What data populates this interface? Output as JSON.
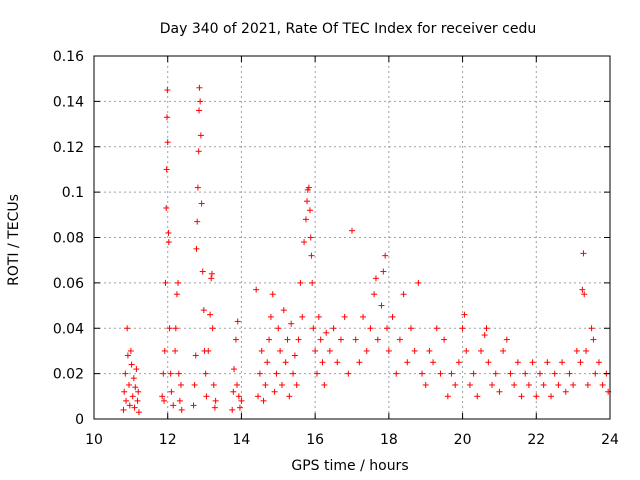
{
  "chart_data": {
    "type": "scatter",
    "title": "Day 340 of 2021, Rate Of TEC Index for receiver cedu",
    "xlabel": "GPS time / hours",
    "ylabel": "ROTI / TECUs",
    "xlim": [
      10,
      24
    ],
    "ylim": [
      0,
      0.16
    ],
    "x_ticks": [
      10,
      12,
      14,
      16,
      18,
      20,
      22,
      24
    ],
    "x_tick_labels": [
      "10",
      "12",
      "14",
      "16",
      "18",
      "20",
      "22",
      "24"
    ],
    "y_ticks": [
      0,
      0.02,
      0.04,
      0.06,
      0.08,
      0.1,
      0.12,
      0.14,
      0.16
    ],
    "y_tick_labels": [
      "0",
      "0.02",
      "0.04",
      "0.06",
      "0.08",
      "0.1",
      "0.12",
      "0.14",
      "0.16"
    ],
    "grid": true,
    "marker": "+",
    "color": "#ff0000",
    "series": [
      {
        "points": [
          [
            10.8,
            0.004
          ],
          [
            10.82,
            0.012
          ],
          [
            10.85,
            0.02
          ],
          [
            10.87,
            0.008
          ],
          [
            10.9,
            0.04
          ],
          [
            10.92,
            0.028
          ],
          [
            10.95,
            0.015
          ],
          [
            10.97,
            0.006
          ],
          [
            11.0,
            0.03
          ],
          [
            11.02,
            0.024
          ],
          [
            11.05,
            0.01
          ],
          [
            11.08,
            0.018
          ],
          [
            11.1,
            0.005
          ],
          [
            11.12,
            0.014
          ],
          [
            11.15,
            0.022
          ],
          [
            11.18,
            0.008
          ],
          [
            11.2,
            0.012
          ],
          [
            11.22,
            0.003
          ],
          [
            11.85,
            0.01
          ],
          [
            11.88,
            0.02
          ],
          [
            11.9,
            0.008
          ],
          [
            11.92,
            0.03
          ],
          [
            11.94,
            0.06
          ],
          [
            11.96,
            0.093
          ],
          [
            11.97,
            0.11
          ],
          [
            11.98,
            0.133
          ],
          [
            11.99,
            0.145
          ],
          [
            12.0,
            0.122
          ],
          [
            12.02,
            0.082
          ],
          [
            12.03,
            0.078
          ],
          [
            12.05,
            0.04
          ],
          [
            12.08,
            0.02
          ],
          [
            12.1,
            0.012
          ],
          [
            12.15,
            0.006
          ],
          [
            12.2,
            0.03
          ],
          [
            12.22,
            0.04
          ],
          [
            12.25,
            0.055
          ],
          [
            12.28,
            0.06
          ],
          [
            12.3,
            0.02
          ],
          [
            12.33,
            0.008
          ],
          [
            12.36,
            0.015
          ],
          [
            12.38,
            0.004
          ],
          [
            12.7,
            0.006
          ],
          [
            12.73,
            0.015
          ],
          [
            12.76,
            0.028
          ],
          [
            12.78,
            0.075
          ],
          [
            12.8,
            0.087
          ],
          [
            12.82,
            0.102
          ],
          [
            12.84,
            0.118
          ],
          [
            12.85,
            0.136
          ],
          [
            12.86,
            0.146
          ],
          [
            12.88,
            0.14
          ],
          [
            12.9,
            0.125
          ],
          [
            12.92,
            0.095
          ],
          [
            12.95,
            0.065
          ],
          [
            12.98,
            0.048
          ],
          [
            13.0,
            0.03
          ],
          [
            13.03,
            0.02
          ],
          [
            13.05,
            0.01
          ],
          [
            13.1,
            0.03
          ],
          [
            13.15,
            0.046
          ],
          [
            13.18,
            0.062
          ],
          [
            13.2,
            0.064
          ],
          [
            13.22,
            0.04
          ],
          [
            13.25,
            0.015
          ],
          [
            13.28,
            0.005
          ],
          [
            13.3,
            0.008
          ],
          [
            13.75,
            0.004
          ],
          [
            13.78,
            0.012
          ],
          [
            13.8,
            0.022
          ],
          [
            13.85,
            0.035
          ],
          [
            13.88,
            0.015
          ],
          [
            13.9,
            0.043
          ],
          [
            13.93,
            0.01
          ],
          [
            13.96,
            0.005
          ],
          [
            14.0,
            0.008
          ],
          [
            14.4,
            0.057
          ],
          [
            14.45,
            0.01
          ],
          [
            14.5,
            0.02
          ],
          [
            14.55,
            0.03
          ],
          [
            14.6,
            0.008
          ],
          [
            14.65,
            0.015
          ],
          [
            14.7,
            0.025
          ],
          [
            14.75,
            0.035
          ],
          [
            14.8,
            0.045
          ],
          [
            14.85,
            0.055
          ],
          [
            14.9,
            0.012
          ],
          [
            14.95,
            0.02
          ],
          [
            15.0,
            0.04
          ],
          [
            15.05,
            0.03
          ],
          [
            15.1,
            0.015
          ],
          [
            15.15,
            0.048
          ],
          [
            15.2,
            0.025
          ],
          [
            15.25,
            0.035
          ],
          [
            15.3,
            0.01
          ],
          [
            15.35,
            0.042
          ],
          [
            15.4,
            0.02
          ],
          [
            15.45,
            0.028
          ],
          [
            15.5,
            0.015
          ],
          [
            15.55,
            0.035
          ],
          [
            15.6,
            0.06
          ],
          [
            15.65,
            0.045
          ],
          [
            15.7,
            0.078
          ],
          [
            15.75,
            0.088
          ],
          [
            15.78,
            0.096
          ],
          [
            15.8,
            0.101
          ],
          [
            15.83,
            0.102
          ],
          [
            15.86,
            0.092
          ],
          [
            15.88,
            0.08
          ],
          [
            15.9,
            0.072
          ],
          [
            15.92,
            0.06
          ],
          [
            15.95,
            0.04
          ],
          [
            16.0,
            0.03
          ],
          [
            16.05,
            0.02
          ],
          [
            16.1,
            0.045
          ],
          [
            16.15,
            0.035
          ],
          [
            16.2,
            0.025
          ],
          [
            16.25,
            0.015
          ],
          [
            16.3,
            0.038
          ],
          [
            16.4,
            0.03
          ],
          [
            16.5,
            0.04
          ],
          [
            16.6,
            0.025
          ],
          [
            16.7,
            0.035
          ],
          [
            16.8,
            0.045
          ],
          [
            16.9,
            0.02
          ],
          [
            17.0,
            0.083
          ],
          [
            17.1,
            0.035
          ],
          [
            17.2,
            0.025
          ],
          [
            17.3,
            0.045
          ],
          [
            17.4,
            0.03
          ],
          [
            17.5,
            0.04
          ],
          [
            17.6,
            0.055
          ],
          [
            17.65,
            0.062
          ],
          [
            17.7,
            0.035
          ],
          [
            17.8,
            0.05
          ],
          [
            17.85,
            0.065
          ],
          [
            17.9,
            0.072
          ],
          [
            17.95,
            0.04
          ],
          [
            18.0,
            0.03
          ],
          [
            18.1,
            0.045
          ],
          [
            18.2,
            0.02
          ],
          [
            18.3,
            0.035
          ],
          [
            18.4,
            0.055
          ],
          [
            18.5,
            0.025
          ],
          [
            18.6,
            0.04
          ],
          [
            18.7,
            0.03
          ],
          [
            18.8,
            0.06
          ],
          [
            18.9,
            0.02
          ],
          [
            19.0,
            0.015
          ],
          [
            19.1,
            0.03
          ],
          [
            19.2,
            0.025
          ],
          [
            19.3,
            0.04
          ],
          [
            19.4,
            0.02
          ],
          [
            19.5,
            0.035
          ],
          [
            19.6,
            0.01
          ],
          [
            19.7,
            0.02
          ],
          [
            19.8,
            0.015
          ],
          [
            19.9,
            0.025
          ],
          [
            20.0,
            0.04
          ],
          [
            20.05,
            0.046
          ],
          [
            20.1,
            0.03
          ],
          [
            20.2,
            0.015
          ],
          [
            20.3,
            0.02
          ],
          [
            20.4,
            0.01
          ],
          [
            20.5,
            0.03
          ],
          [
            20.6,
            0.037
          ],
          [
            20.65,
            0.04
          ],
          [
            20.7,
            0.025
          ],
          [
            20.8,
            0.015
          ],
          [
            20.9,
            0.02
          ],
          [
            21.0,
            0.012
          ],
          [
            21.1,
            0.03
          ],
          [
            21.2,
            0.035
          ],
          [
            21.3,
            0.02
          ],
          [
            21.4,
            0.015
          ],
          [
            21.5,
            0.025
          ],
          [
            21.6,
            0.01
          ],
          [
            21.7,
            0.02
          ],
          [
            21.8,
            0.015
          ],
          [
            21.9,
            0.025
          ],
          [
            22.0,
            0.01
          ],
          [
            22.1,
            0.02
          ],
          [
            22.2,
            0.015
          ],
          [
            22.3,
            0.025
          ],
          [
            22.4,
            0.01
          ],
          [
            22.5,
            0.02
          ],
          [
            22.6,
            0.015
          ],
          [
            22.7,
            0.025
          ],
          [
            22.8,
            0.012
          ],
          [
            22.9,
            0.02
          ],
          [
            23.0,
            0.015
          ],
          [
            23.1,
            0.03
          ],
          [
            23.2,
            0.025
          ],
          [
            23.25,
            0.057
          ],
          [
            23.28,
            0.073
          ],
          [
            23.3,
            0.055
          ],
          [
            23.35,
            0.03
          ],
          [
            23.4,
            0.015
          ],
          [
            23.5,
            0.04
          ],
          [
            23.55,
            0.035
          ],
          [
            23.6,
            0.02
          ],
          [
            23.7,
            0.025
          ],
          [
            23.8,
            0.015
          ],
          [
            23.9,
            0.02
          ],
          [
            23.95,
            0.012
          ]
        ]
      }
    ]
  }
}
